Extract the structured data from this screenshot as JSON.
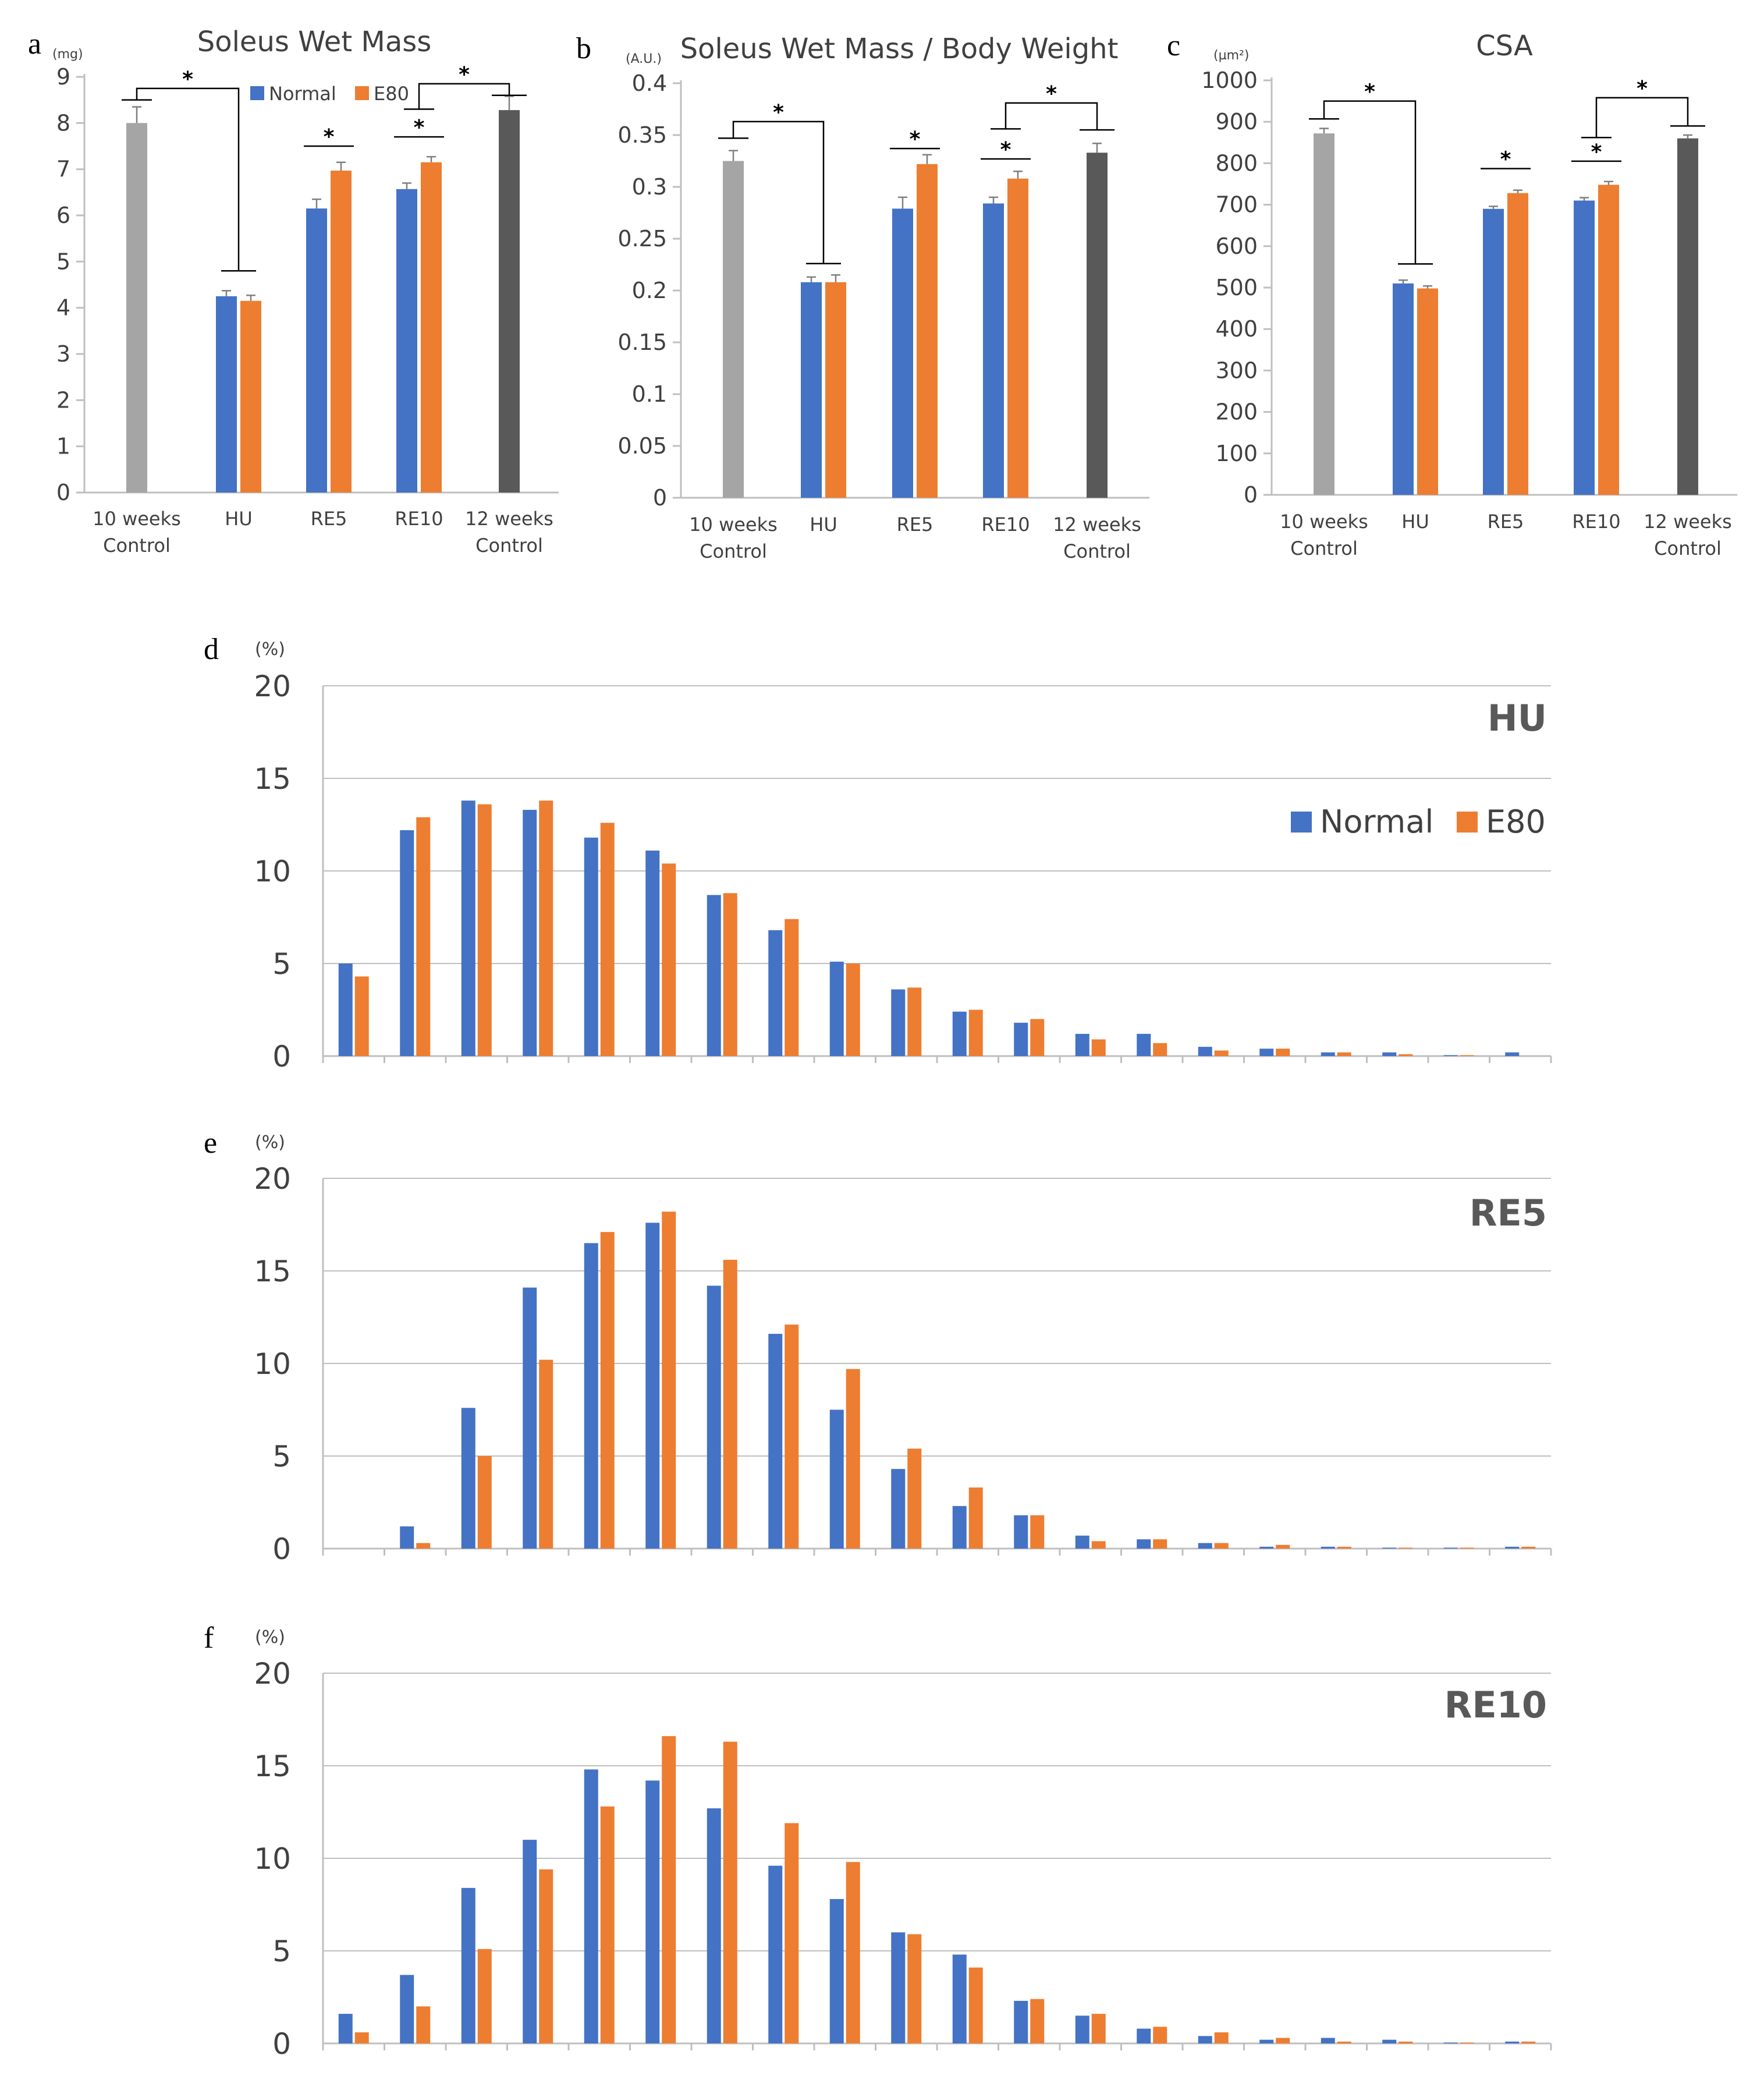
{
  "chart_data": [
    {
      "panel": "a",
      "type": "bar",
      "title": "Soleus Wet Mass",
      "unit": "(mg)",
      "ylim": [
        0,
        9
      ],
      "yticks": [
        "0",
        "1",
        "2",
        "3",
        "4",
        "5",
        "6",
        "7",
        "8",
        "9"
      ],
      "categories": [
        "10 weeks\nControl",
        "HU",
        "RE5",
        "RE10",
        "12 weeks\nControl"
      ],
      "legend": [
        "Normal",
        "E80"
      ],
      "colors": {
        "normal": "#4472C4",
        "e80": "#ED7D31",
        "control10": "#A5A5A5",
        "control12": "#595959"
      },
      "bars": [
        {
          "cat": 0,
          "slot": "single",
          "series": "control10",
          "value": 8.0,
          "err": 0.35
        },
        {
          "cat": 1,
          "slot": "left",
          "series": "normal",
          "value": 4.25,
          "err": 0.12
        },
        {
          "cat": 1,
          "slot": "right",
          "series": "e80",
          "value": 4.15,
          "err": 0.12
        },
        {
          "cat": 2,
          "slot": "left",
          "series": "normal",
          "value": 6.15,
          "err": 0.2
        },
        {
          "cat": 2,
          "slot": "right",
          "series": "e80",
          "value": 6.97,
          "err": 0.18
        },
        {
          "cat": 3,
          "slot": "left",
          "series": "normal",
          "value": 6.57,
          "err": 0.13
        },
        {
          "cat": 3,
          "slot": "right",
          "series": "e80",
          "value": 7.15,
          "err": 0.12
        },
        {
          "cat": 4,
          "slot": "single",
          "series": "control12",
          "value": 8.28,
          "err": 0.3
        }
      ],
      "significance": [
        {
          "type": "up",
          "a": {
            "cat": 0,
            "slot": "single"
          },
          "b": {
            "cat": 1,
            "slot": "center"
          },
          "bar_level": 8.75,
          "ea": 8.5,
          "eb": 4.8,
          "label": "*"
        },
        {
          "type": "pair",
          "a": {
            "cat": 2,
            "slot": "left"
          },
          "b": {
            "cat": 2,
            "slot": "right"
          },
          "bar_level": 7.5,
          "label": "*"
        },
        {
          "type": "pair",
          "a": {
            "cat": 3,
            "slot": "left"
          },
          "b": {
            "cat": 3,
            "slot": "right"
          },
          "bar_level": 7.7,
          "label": "*"
        },
        {
          "type": "up",
          "a": {
            "cat": 3,
            "slot": "center"
          },
          "b": {
            "cat": 4,
            "slot": "single"
          },
          "bar_level": 8.85,
          "ea": 8.3,
          "eb": 8.6,
          "label": "*"
        }
      ]
    },
    {
      "panel": "b",
      "type": "bar",
      "title": "Soleus Wet Mass / Body Weight",
      "unit": "(A.U.)",
      "ylim": [
        0,
        0.4
      ],
      "yticks": [
        "0",
        "0.05",
        "0.1",
        "0.15",
        "0.2",
        "0.25",
        "0.3",
        "0.35",
        "0.4"
      ],
      "categories": [
        "10 weeks\nControl",
        "HU",
        "RE5",
        "RE10",
        "12 weeks\nControl"
      ],
      "legend": [
        "Normal",
        "E80"
      ],
      "colors": {
        "normal": "#4472C4",
        "e80": "#ED7D31",
        "control10": "#A5A5A5",
        "control12": "#595959"
      },
      "bars": [
        {
          "cat": 0,
          "slot": "single",
          "series": "control10",
          "value": 0.325,
          "err": 0.01
        },
        {
          "cat": 1,
          "slot": "left",
          "series": "normal",
          "value": 0.208,
          "err": 0.005
        },
        {
          "cat": 1,
          "slot": "right",
          "series": "e80",
          "value": 0.208,
          "err": 0.007
        },
        {
          "cat": 2,
          "slot": "left",
          "series": "normal",
          "value": 0.279,
          "err": 0.011
        },
        {
          "cat": 2,
          "slot": "right",
          "series": "e80",
          "value": 0.322,
          "err": 0.009
        },
        {
          "cat": 3,
          "slot": "left",
          "series": "normal",
          "value": 0.284,
          "err": 0.006
        },
        {
          "cat": 3,
          "slot": "right",
          "series": "e80",
          "value": 0.308,
          "err": 0.007
        },
        {
          "cat": 4,
          "slot": "single",
          "series": "control12",
          "value": 0.333,
          "err": 0.009
        }
      ],
      "significance": [
        {
          "type": "up",
          "a": {
            "cat": 0,
            "slot": "single"
          },
          "b": {
            "cat": 1,
            "slot": "center"
          },
          "bar_level": 0.363,
          "ea": 0.347,
          "eb": 0.226,
          "label": "*"
        },
        {
          "type": "pair",
          "a": {
            "cat": 2,
            "slot": "left"
          },
          "b": {
            "cat": 2,
            "slot": "right"
          },
          "bar_level": 0.337,
          "label": "*"
        },
        {
          "type": "pair",
          "a": {
            "cat": 3,
            "slot": "left"
          },
          "b": {
            "cat": 3,
            "slot": "right"
          },
          "bar_level": 0.327,
          "label": "*"
        },
        {
          "type": "up",
          "a": {
            "cat": 3,
            "slot": "center"
          },
          "b": {
            "cat": 4,
            "slot": "single"
          },
          "bar_level": 0.381,
          "ea": 0.356,
          "eb": 0.355,
          "label": "*"
        }
      ]
    },
    {
      "panel": "c",
      "type": "bar",
      "title": "CSA",
      "unit": "(µm²)",
      "ylim": [
        0,
        1000
      ],
      "yticks": [
        "0",
        "100",
        "200",
        "300",
        "400",
        "500",
        "600",
        "700",
        "800",
        "900",
        "1000"
      ],
      "categories": [
        "10 weeks\nControl",
        "HU",
        "RE5",
        "RE10",
        "12 weeks\nControl"
      ],
      "legend": [
        "Normal",
        "E80"
      ],
      "colors": {
        "normal": "#4472C4",
        "e80": "#ED7D31",
        "control10": "#A5A5A5",
        "control12": "#595959"
      },
      "bars": [
        {
          "cat": 0,
          "slot": "single",
          "series": "control10",
          "value": 872,
          "err": 12
        },
        {
          "cat": 1,
          "slot": "left",
          "series": "normal",
          "value": 510,
          "err": 8
        },
        {
          "cat": 1,
          "slot": "right",
          "series": "e80",
          "value": 498,
          "err": 6
        },
        {
          "cat": 2,
          "slot": "left",
          "series": "normal",
          "value": 690,
          "err": 6
        },
        {
          "cat": 2,
          "slot": "right",
          "series": "e80",
          "value": 728,
          "err": 7
        },
        {
          "cat": 3,
          "slot": "left",
          "series": "normal",
          "value": 710,
          "err": 7
        },
        {
          "cat": 3,
          "slot": "right",
          "series": "e80",
          "value": 748,
          "err": 8
        },
        {
          "cat": 4,
          "slot": "single",
          "series": "control12",
          "value": 860,
          "err": 8
        }
      ],
      "significance": [
        {
          "type": "up",
          "a": {
            "cat": 0,
            "slot": "single"
          },
          "b": {
            "cat": 1,
            "slot": "center"
          },
          "bar_level": 950,
          "ea": 907,
          "eb": 557,
          "label": "*"
        },
        {
          "type": "pair",
          "a": {
            "cat": 2,
            "slot": "left"
          },
          "b": {
            "cat": 2,
            "slot": "right"
          },
          "bar_level": 787,
          "label": "*"
        },
        {
          "type": "pair",
          "a": {
            "cat": 3,
            "slot": "left"
          },
          "b": {
            "cat": 3,
            "slot": "right"
          },
          "bar_level": 805,
          "label": "*"
        },
        {
          "type": "up",
          "a": {
            "cat": 3,
            "slot": "center"
          },
          "b": {
            "cat": 4,
            "slot": "single"
          },
          "bar_level": 958,
          "ea": 862,
          "eb": 890,
          "label": "*"
        }
      ]
    },
    {
      "panel": "d",
      "type": "bar",
      "title": "HU",
      "unit": "(%)",
      "ylim": [
        0,
        20
      ],
      "yticks": [
        "0",
        "5",
        "10",
        "15",
        "20"
      ],
      "legend": [
        "Normal",
        "E80"
      ],
      "series": [
        {
          "name": "Normal",
          "color": "#4472C4",
          "values": [
            5.0,
            12.2,
            13.8,
            13.3,
            11.8,
            11.1,
            8.7,
            6.8,
            5.1,
            3.6,
            2.4,
            1.8,
            1.2,
            1.2,
            0.5,
            0.4,
            0.2,
            0.2,
            0.05,
            0.2
          ]
        },
        {
          "name": "E80",
          "color": "#ED7D31",
          "values": [
            4.3,
            12.9,
            13.6,
            13.8,
            12.6,
            10.4,
            8.8,
            7.4,
            5.0,
            3.7,
            2.5,
            2.0,
            0.9,
            0.7,
            0.3,
            0.4,
            0.2,
            0.1,
            0.05,
            0.0
          ]
        }
      ]
    },
    {
      "panel": "e",
      "type": "bar",
      "title": "RE5",
      "unit": "(%)",
      "ylim": [
        0,
        20
      ],
      "yticks": [
        "0",
        "5",
        "10",
        "15",
        "20"
      ],
      "legend": [],
      "series": [
        {
          "name": "Normal",
          "color": "#4472C4",
          "values": [
            0.0,
            1.2,
            7.6,
            14.1,
            16.5,
            17.6,
            14.2,
            11.6,
            7.5,
            4.3,
            2.3,
            1.8,
            0.7,
            0.5,
            0.3,
            0.1,
            0.1,
            0.05,
            0.05,
            0.1
          ]
        },
        {
          "name": "E80",
          "color": "#ED7D31",
          "values": [
            0.0,
            0.3,
            5.0,
            10.2,
            17.1,
            18.2,
            15.6,
            12.1,
            9.7,
            5.4,
            3.3,
            1.8,
            0.4,
            0.5,
            0.3,
            0.2,
            0.1,
            0.05,
            0.05,
            0.1
          ]
        }
      ]
    },
    {
      "panel": "f",
      "type": "bar",
      "title": "RE10",
      "unit": "(%)",
      "ylim": [
        0,
        20
      ],
      "yticks": [
        "0",
        "5",
        "10",
        "15",
        "20"
      ],
      "legend": [],
      "series": [
        {
          "name": "Normal",
          "color": "#4472C4",
          "values": [
            1.6,
            3.7,
            8.4,
            11.0,
            14.8,
            14.2,
            12.7,
            9.6,
            7.8,
            6.0,
            4.8,
            2.3,
            1.5,
            0.8,
            0.4,
            0.2,
            0.3,
            0.2,
            0.05,
            0.1
          ]
        },
        {
          "name": "E80",
          "color": "#ED7D31",
          "values": [
            0.6,
            2.0,
            5.1,
            9.4,
            12.8,
            16.6,
            16.3,
            11.9,
            9.8,
            5.9,
            4.1,
            2.4,
            1.6,
            0.9,
            0.6,
            0.3,
            0.1,
            0.1,
            0.05,
            0.1
          ]
        }
      ]
    }
  ]
}
